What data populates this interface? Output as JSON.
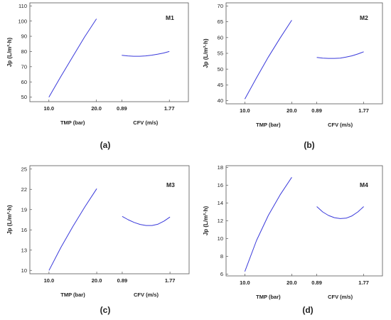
{
  "figure": {
    "panels": [
      {
        "caption": "(a)",
        "model": "M1",
        "ylabel": "Jp (L/m²·h)",
        "yticks": [
          "50",
          "60",
          "70",
          "80",
          "90",
          "100",
          "110"
        ]
      },
      {
        "caption": "(b)",
        "model": "M2",
        "ylabel": "Jp (L/m²·h)",
        "yticks": [
          "40",
          "45",
          "50",
          "55",
          "60",
          "65",
          "70"
        ]
      },
      {
        "caption": "(c)",
        "model": "M3",
        "ylabel": "Jp (L/m²·h)",
        "yticks": [
          "10",
          "13",
          "16",
          "19",
          "22",
          "25"
        ]
      },
      {
        "caption": "(d)",
        "model": "M4",
        "ylabel": "Jp (L/m²·h)",
        "yticks": [
          "6",
          "8",
          "10",
          "12",
          "14",
          "16",
          "18"
        ]
      }
    ],
    "shared": {
      "xtick_tmp_low": "10.0",
      "xtick_tmp_high": "20.0",
      "xtick_cfv_low": "0.89",
      "xtick_cfv_high": "1.77",
      "xlabel_tmp": "TMP (bar)",
      "xlabel_cfv": "CFV (m/s)"
    },
    "line_color": "#3a3adb"
  },
  "chart_data": [
    {
      "type": "line",
      "panel": "(a)",
      "title": "M1",
      "ylabel": "Jp (L/m²·h)",
      "ylim": [
        47,
        112
      ],
      "yticks": [
        50,
        60,
        70,
        80,
        90,
        100,
        110
      ],
      "grid": false,
      "series": [
        {
          "factor": "TMP (bar)",
          "x": [
            10.0,
            12.5,
            15.0,
            17.5,
            20.0
          ],
          "y": [
            50,
            63.5,
            76.5,
            89.5,
            101.5
          ]
        },
        {
          "factor": "CFV (m/s)",
          "x": [
            0.89,
            1.0,
            1.11,
            1.22,
            1.33,
            1.44,
            1.55,
            1.66,
            1.77
          ],
          "y": [
            77.5,
            77.1,
            76.9,
            76.9,
            77.1,
            77.6,
            78.2,
            79.0,
            80.0
          ]
        }
      ]
    },
    {
      "type": "line",
      "panel": "(b)",
      "title": "M2",
      "ylabel": "Jp (L/m²·h)",
      "ylim": [
        39,
        71
      ],
      "yticks": [
        40,
        45,
        50,
        55,
        60,
        65,
        70
      ],
      "grid": false,
      "series": [
        {
          "factor": "TMP (bar)",
          "x": [
            10.0,
            12.5,
            15.0,
            17.5,
            20.0
          ],
          "y": [
            40.5,
            47.3,
            53.8,
            59.8,
            65.5
          ]
        },
        {
          "factor": "CFV (m/s)",
          "x": [
            0.89,
            1.0,
            1.11,
            1.22,
            1.33,
            1.44,
            1.55,
            1.66,
            1.77
          ],
          "y": [
            53.7,
            53.5,
            53.4,
            53.4,
            53.5,
            53.8,
            54.2,
            54.8,
            55.5
          ]
        }
      ]
    },
    {
      "type": "line",
      "panel": "(c)",
      "title": "M3",
      "ylabel": "Jp (L/m²·h)",
      "ylim": [
        9.5,
        25.5
      ],
      "yticks": [
        10,
        13,
        16,
        19,
        22,
        25
      ],
      "grid": false,
      "series": [
        {
          "factor": "TMP (bar)",
          "x": [
            10.0,
            12.5,
            15.0,
            17.5,
            20.0
          ],
          "y": [
            10.0,
            13.4,
            16.5,
            19.4,
            22.1
          ]
        },
        {
          "factor": "CFV (m/s)",
          "x": [
            0.89,
            1.0,
            1.11,
            1.22,
            1.33,
            1.44,
            1.55,
            1.66,
            1.77
          ],
          "y": [
            18.0,
            17.5,
            17.1,
            16.8,
            16.65,
            16.65,
            16.85,
            17.3,
            17.9
          ]
        }
      ]
    },
    {
      "type": "line",
      "panel": "(d)",
      "title": "M4",
      "ylabel": "Jp (L/m²·h)",
      "ylim": [
        5.8,
        18.2
      ],
      "yticks": [
        6,
        8,
        10,
        12,
        14,
        16,
        18
      ],
      "grid": false,
      "series": [
        {
          "factor": "TMP (bar)",
          "x": [
            10.0,
            12.5,
            15.0,
            17.5,
            20.0
          ],
          "y": [
            6.3,
            9.8,
            12.6,
            14.9,
            16.9
          ]
        },
        {
          "factor": "CFV (m/s)",
          "x": [
            0.89,
            1.0,
            1.11,
            1.22,
            1.33,
            1.44,
            1.55,
            1.66,
            1.77
          ],
          "y": [
            13.6,
            13.0,
            12.6,
            12.35,
            12.25,
            12.3,
            12.55,
            13.0,
            13.6
          ]
        }
      ]
    }
  ]
}
